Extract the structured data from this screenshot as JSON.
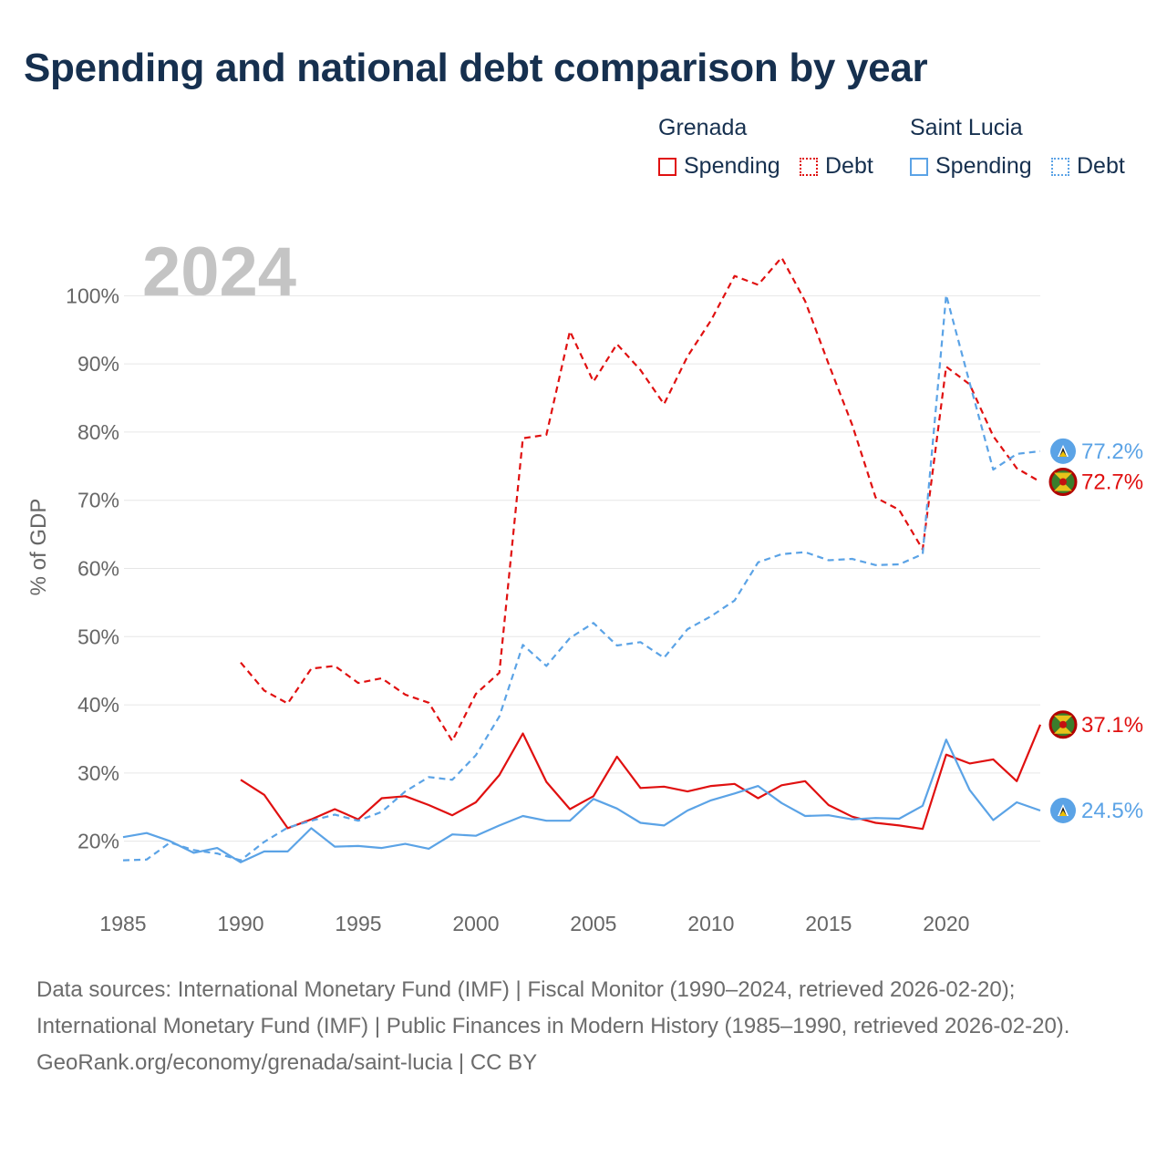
{
  "title": "Spending and national debt comparison by year",
  "legend": {
    "grenada": {
      "name": "Grenada",
      "spending": "Spending",
      "debt": "Debt",
      "color": "#e01010"
    },
    "saint_lucia": {
      "name": "Saint Lucia",
      "spending": "Spending",
      "debt": "Debt",
      "color": "#5ba3e6"
    }
  },
  "year_watermark": "2024",
  "chart_data": {
    "type": "line",
    "ylabel": "% of GDP",
    "xlim": [
      1985,
      2024
    ],
    "ylim": [
      13,
      107
    ],
    "x_ticks": [
      1985,
      1990,
      1995,
      2000,
      2005,
      2010,
      2015,
      2020
    ],
    "y_ticks": [
      20,
      30,
      40,
      50,
      60,
      70,
      80,
      90,
      100
    ],
    "y_tick_labels": [
      "20%",
      "30%",
      "40%",
      "50%",
      "60%",
      "70%",
      "80%",
      "90%",
      "100%"
    ],
    "series": [
      {
        "name": "Grenada Spending",
        "country": "Grenada",
        "color": "#e01010",
        "dash": false,
        "x": [
          1990,
          1991,
          1992,
          1993,
          1994,
          1995,
          1996,
          1997,
          1998,
          1999,
          2000,
          2001,
          2002,
          2003,
          2004,
          2005,
          2006,
          2007,
          2008,
          2009,
          2010,
          2011,
          2012,
          2013,
          2014,
          2015,
          2016,
          2017,
          2018,
          2019,
          2020,
          2021,
          2022,
          2023,
          2024
        ],
        "values": [
          29.0,
          26.8,
          21.9,
          23.2,
          24.7,
          23.2,
          26.3,
          26.6,
          25.3,
          23.8,
          25.7,
          29.7,
          35.8,
          28.7,
          24.7,
          26.6,
          32.4,
          27.8,
          28.0,
          27.3,
          28.1,
          28.4,
          26.3,
          28.2,
          28.8,
          25.3,
          23.6,
          22.7,
          22.3,
          21.8,
          32.7,
          31.4,
          32.0,
          28.8,
          37.1
        ],
        "end_label": "37.1%"
      },
      {
        "name": "Grenada Debt",
        "country": "Grenada",
        "color": "#e01010",
        "dash": true,
        "x": [
          1990,
          1991,
          1992,
          1993,
          1994,
          1995,
          1996,
          1997,
          1998,
          1999,
          2000,
          2001,
          2002,
          2003,
          2004,
          2005,
          2006,
          2007,
          2008,
          2009,
          2010,
          2011,
          2012,
          2013,
          2014,
          2015,
          2016,
          2017,
          2018,
          2019,
          2020,
          2021,
          2022,
          2023,
          2024
        ],
        "values": [
          46.2,
          42.1,
          40.2,
          45.3,
          45.7,
          43.2,
          43.9,
          41.5,
          40.3,
          34.7,
          41.6,
          44.7,
          79.1,
          79.6,
          94.8,
          87.4,
          92.9,
          89.1,
          84.1,
          91.1,
          96.4,
          102.9,
          101.6,
          105.6,
          99.2,
          90.0,
          81.1,
          70.4,
          68.6,
          62.8,
          89.6,
          87.0,
          79.4,
          74.7,
          72.7
        ],
        "end_label": "72.7%"
      },
      {
        "name": "Saint Lucia Spending",
        "country": "Saint Lucia",
        "color": "#5ba3e6",
        "dash": false,
        "x": [
          1985,
          1986,
          1987,
          1988,
          1989,
          1990,
          1991,
          1992,
          1993,
          1994,
          1995,
          1996,
          1997,
          1998,
          1999,
          2000,
          2001,
          2002,
          2003,
          2004,
          2005,
          2006,
          2007,
          2008,
          2009,
          2010,
          2011,
          2012,
          2013,
          2014,
          2015,
          2016,
          2017,
          2018,
          2019,
          2020,
          2021,
          2022,
          2023,
          2024
        ],
        "values": [
          20.6,
          21.2,
          20.0,
          18.3,
          19.0,
          16.9,
          18.5,
          18.5,
          21.9,
          19.2,
          19.3,
          19.0,
          19.6,
          18.9,
          21.0,
          20.8,
          22.3,
          23.7,
          23.0,
          23.0,
          26.2,
          24.8,
          22.7,
          22.3,
          24.5,
          26.0,
          27.0,
          28.1,
          25.6,
          23.7,
          23.8,
          23.2,
          23.4,
          23.3,
          25.2,
          34.9,
          27.5,
          23.1,
          25.7,
          24.5
        ],
        "end_label": "24.5%"
      },
      {
        "name": "Saint Lucia Debt",
        "country": "Saint Lucia",
        "color": "#5ba3e6",
        "dash": true,
        "x": [
          1985,
          1986,
          1987,
          1988,
          1989,
          1990,
          1991,
          1992,
          1993,
          1994,
          1995,
          1996,
          1997,
          1998,
          1999,
          2000,
          2001,
          2002,
          2003,
          2004,
          2005,
          2006,
          2007,
          2008,
          2009,
          2010,
          2011,
          2012,
          2013,
          2014,
          2015,
          2016,
          2017,
          2018,
          2019,
          2020,
          2021,
          2022,
          2023,
          2024
        ],
        "values": [
          17.2,
          17.3,
          19.8,
          18.7,
          18.2,
          17.2,
          19.9,
          22.0,
          23.0,
          23.9,
          23.0,
          24.3,
          27.3,
          29.4,
          29.0,
          32.6,
          38.3,
          48.8,
          45.7,
          49.8,
          52.0,
          48.7,
          49.2,
          46.9,
          51.1,
          53.0,
          55.3,
          60.9,
          62.1,
          62.4,
          61.2,
          61.4,
          60.5,
          60.6,
          62.1,
          100.1,
          87.2,
          74.5,
          76.8,
          77.2
        ],
        "end_label": "77.2%"
      }
    ]
  },
  "footer": {
    "sources": "Data sources: International Monetary Fund (IMF) | Fiscal Monitor (1990–2024, retrieved 2026-02-20); International Monetary Fund (IMF) | Public Finances in Modern History (1985–1990, retrieved 2026-02-20).",
    "credit": "GeoRank.org/economy/grenada/saint-lucia | CC BY"
  }
}
